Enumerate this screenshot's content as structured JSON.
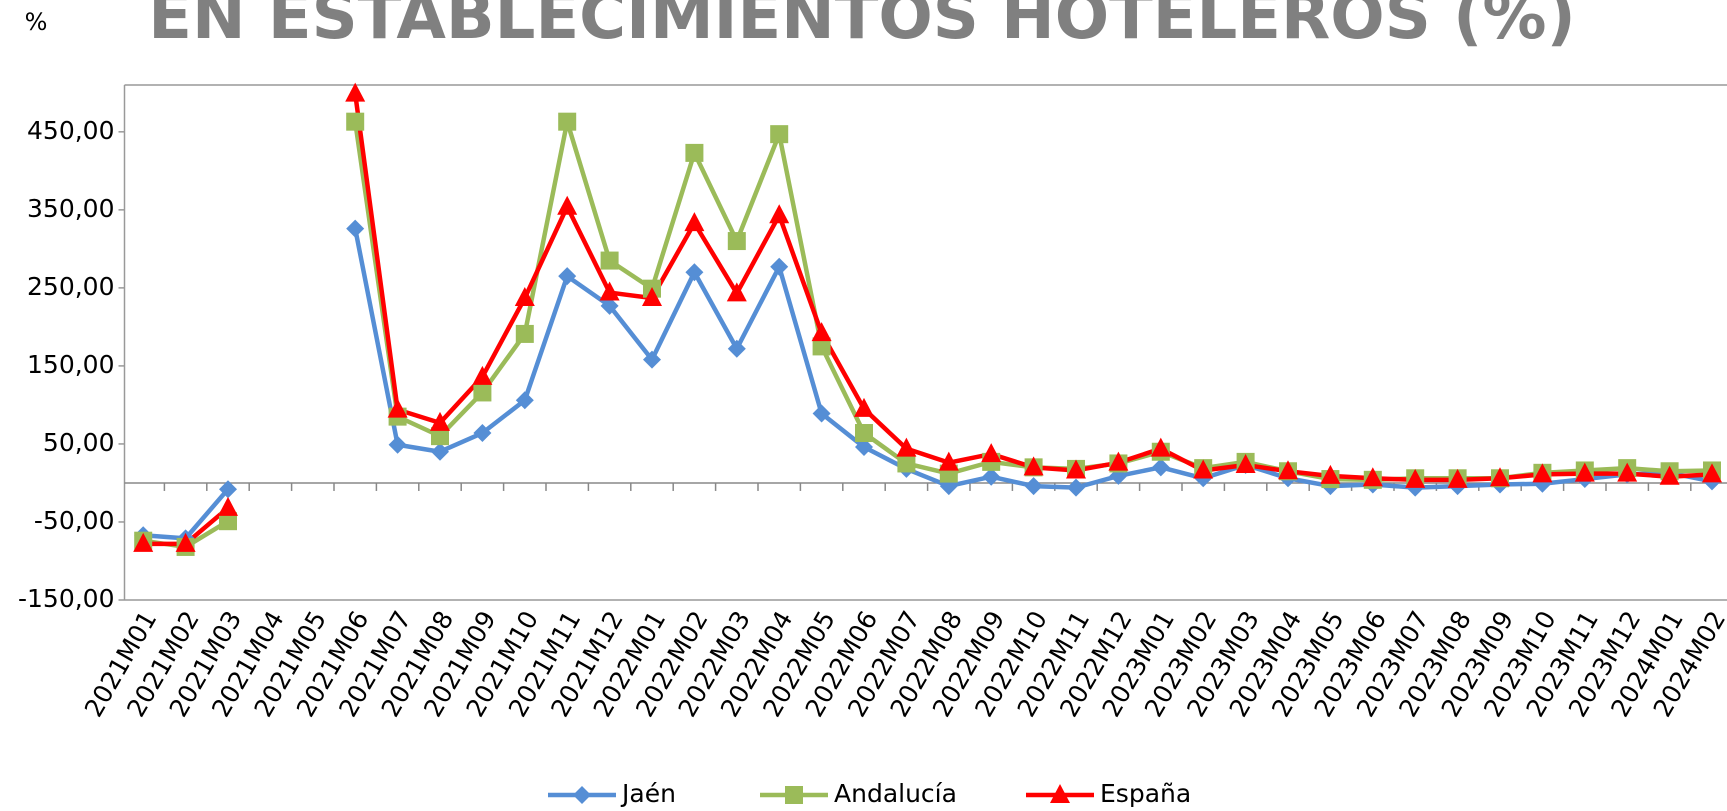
{
  "chart_data": {
    "type": "line",
    "title": "EN ESTABLECIMIENTOS HOTELEROS (%)",
    "y_label": "%",
    "categories": [
      "2021M01",
      "2021M02",
      "2021M03",
      "2021M04",
      "2021M05",
      "2021M06",
      "2021M07",
      "2021M08",
      "2021M09",
      "2021M10",
      "2021M11",
      "2021M12",
      "2022M01",
      "2022M02",
      "2022M03",
      "2022M04",
      "2022M05",
      "2022M06",
      "2022M07",
      "2022M08",
      "2022M09",
      "2022M10",
      "2022M11",
      "2022M12",
      "2023M01",
      "2023M02",
      "2023M03",
      "2023M04",
      "2023M05",
      "2023M06",
      "2023M07",
      "2023M08",
      "2023M09",
      "2023M10",
      "2023M11",
      "2023M12",
      "2024M01",
      "2024M02"
    ],
    "series": [
      {
        "name": "Jaén",
        "color": "#558ed5",
        "marker": "diamond",
        "values": [
          -67,
          -71,
          -8,
          null,
          null,
          326,
          49,
          40,
          64,
          106,
          265,
          227,
          158,
          270,
          172,
          277,
          89,
          46,
          18,
          -4,
          8,
          -4,
          -6,
          9,
          20,
          6,
          23,
          6,
          -4,
          -2,
          -6,
          -4,
          -2,
          -1,
          5,
          11,
          13,
          2
        ]
      },
      {
        "name": "Andalucía",
        "color": "#9bbb59",
        "marker": "square",
        "values": [
          -74,
          -82,
          -49,
          null,
          null,
          463,
          85,
          60,
          116,
          191,
          463,
          285,
          249,
          423,
          310,
          447,
          175,
          64,
          25,
          12,
          27,
          20,
          18,
          25,
          40,
          19,
          27,
          15,
          5,
          4,
          6,
          6,
          6,
          13,
          16,
          19,
          15,
          16
        ]
      },
      {
        "name": "España",
        "color": "#ff0000",
        "marker": "triangle",
        "values": [
          -78,
          -78,
          -32,
          null,
          null,
          499,
          94,
          77,
          136,
          237,
          354,
          244,
          237,
          333,
          243,
          343,
          192,
          95,
          44,
          26,
          37,
          20,
          16,
          26,
          44,
          16,
          23,
          15,
          9,
          6,
          4,
          4,
          6,
          11,
          12,
          12,
          8,
          11
        ]
      }
    ],
    "ylim": [
      -150,
      510
    ],
    "yticks": [
      {
        "value": -150,
        "label": "-150,00"
      },
      {
        "value": -50,
        "label": "-50,00"
      },
      {
        "value": 50,
        "label": "50,00"
      },
      {
        "value": 150,
        "label": "150,00"
      },
      {
        "value": 250,
        "label": "250,00"
      },
      {
        "value": 350,
        "label": "350,00"
      },
      {
        "value": 450,
        "label": "450,00"
      }
    ],
    "legend": "bottom"
  }
}
